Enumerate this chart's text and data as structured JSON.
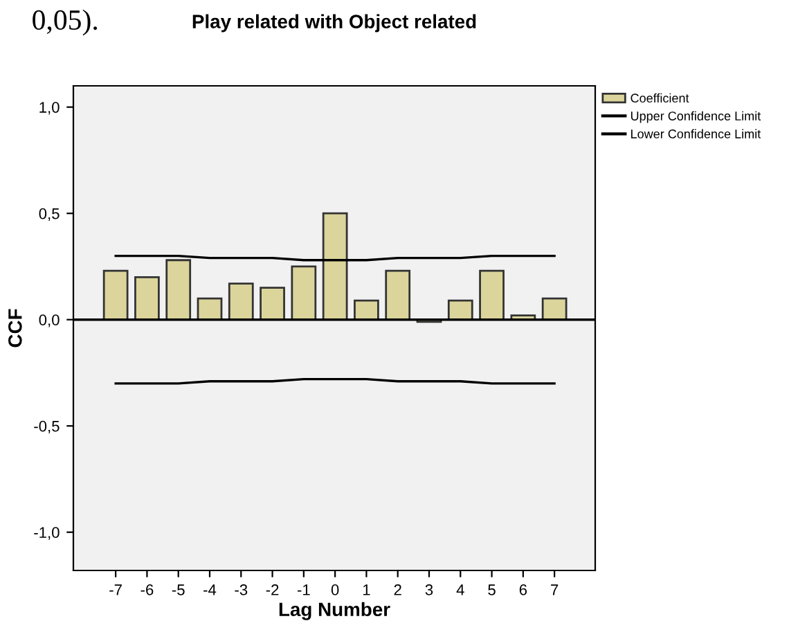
{
  "chart_data": {
    "type": "bar",
    "title": "Play related with Object related",
    "xlabel": "Lag Number",
    "ylabel": "CCF",
    "annotations": [
      "0,05)."
    ],
    "categories": [
      "-7",
      "-6",
      "-5",
      "-4",
      "-3",
      "-2",
      "-1",
      "0",
      "1",
      "2",
      "3",
      "4",
      "5",
      "6",
      "7"
    ],
    "series": [
      {
        "name": "Coefficient",
        "color": "#dbd59c",
        "values": [
          0.23,
          0.2,
          0.28,
          0.1,
          0.17,
          0.15,
          0.25,
          0.5,
          0.09,
          0.23,
          -0.01,
          0.09,
          0.23,
          0.02,
          0.1
        ]
      },
      {
        "name": "Upper Confidence Limit",
        "type": "line",
        "color": "#000000",
        "values": [
          0.3,
          0.3,
          0.3,
          0.29,
          0.29,
          0.29,
          0.28,
          0.28,
          0.28,
          0.29,
          0.29,
          0.29,
          0.3,
          0.3,
          0.3
        ]
      },
      {
        "name": "Lower Confidence Limit",
        "type": "line",
        "color": "#000000",
        "values": [
          -0.3,
          -0.3,
          -0.3,
          -0.29,
          -0.29,
          -0.29,
          -0.28,
          -0.28,
          -0.28,
          -0.29,
          -0.29,
          -0.29,
          -0.3,
          -0.3,
          -0.3
        ]
      }
    ],
    "ref_lines": [
      {
        "axis": "y",
        "value": 0,
        "color": "#000000"
      }
    ],
    "ylim": [
      -1.18,
      1.1
    ],
    "yticks": [
      {
        "value": -1.0,
        "label": "-1,0"
      },
      {
        "value": -0.5,
        "label": "-0,5"
      },
      {
        "value": 0.0,
        "label": "0,0"
      },
      {
        "value": 0.5,
        "label": "0,5"
      },
      {
        "value": 1.0,
        "label": "1,0"
      }
    ],
    "grid": false,
    "legend": "top right",
    "marker": "none",
    "line_style": "solid"
  }
}
